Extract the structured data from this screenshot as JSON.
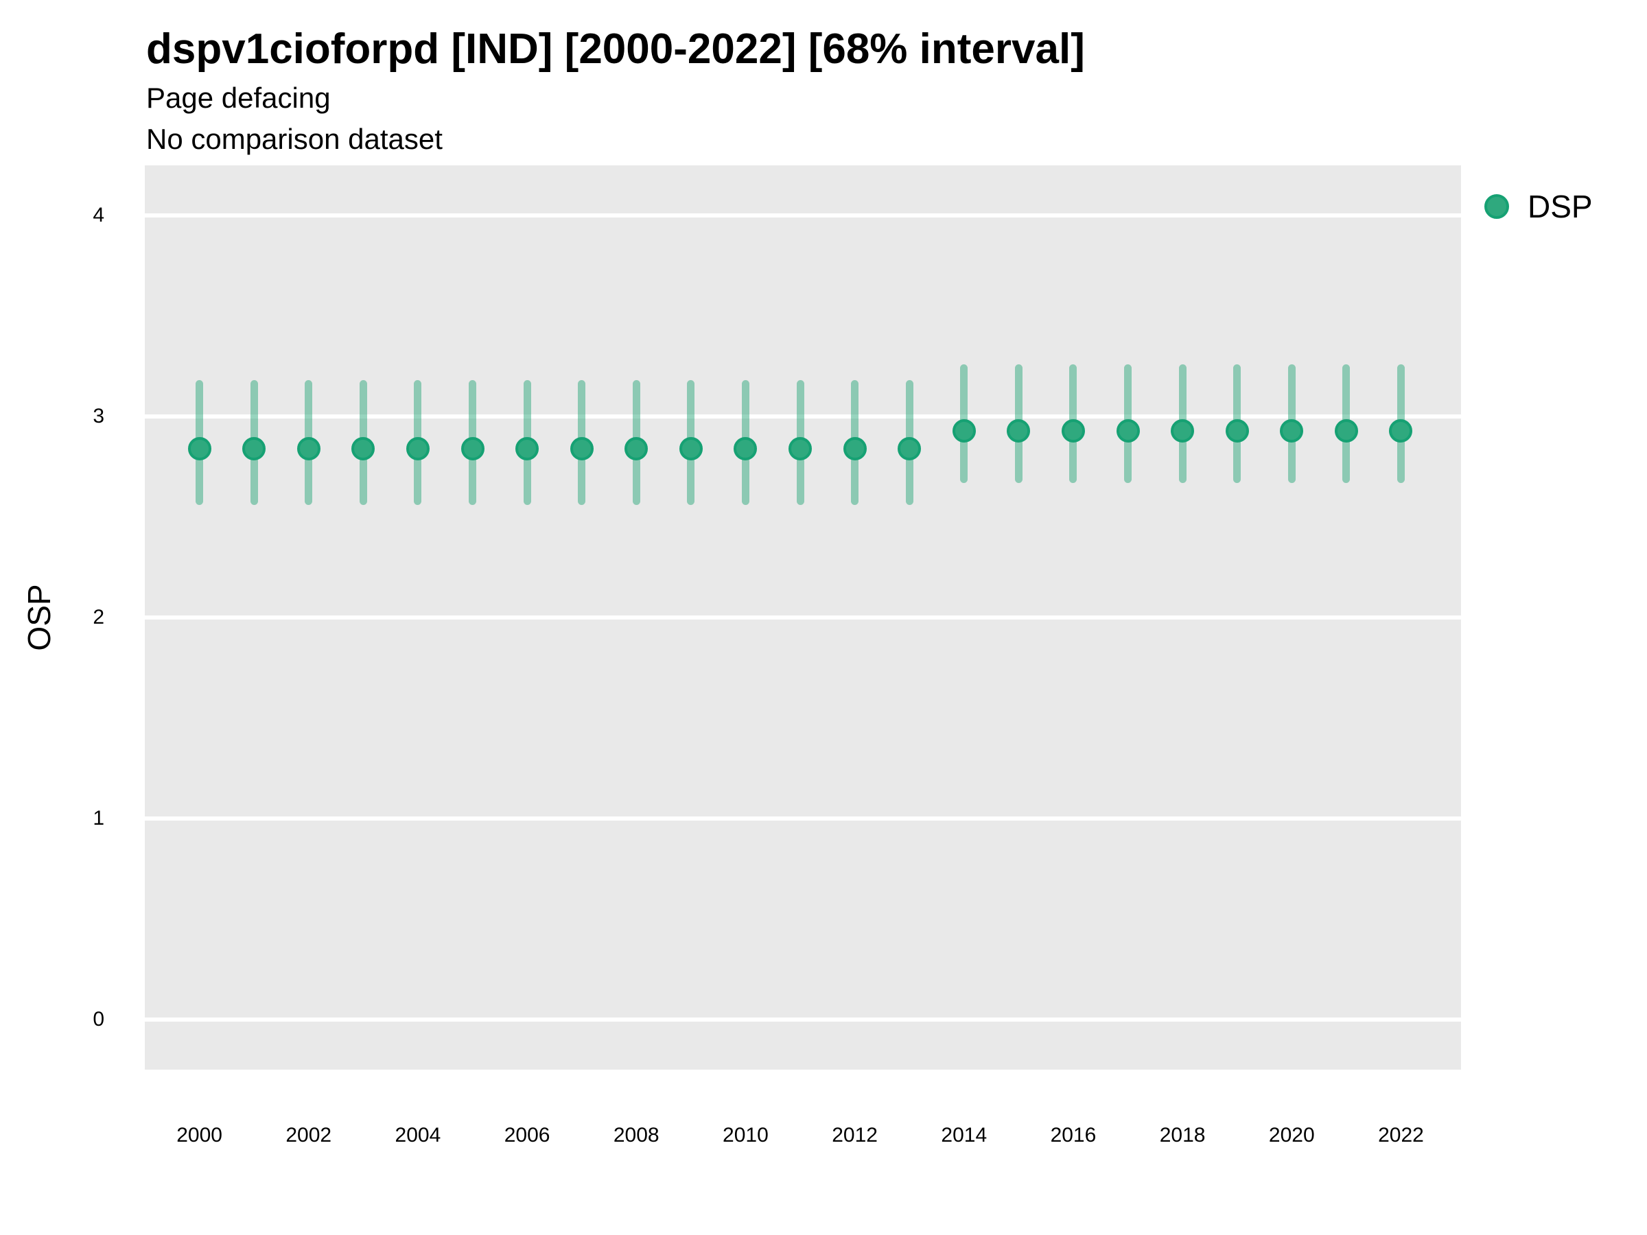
{
  "header": {
    "title": "dspv1cioforpd [IND] [2000-2022] [68% interval]",
    "subtitle": "Page defacing",
    "note": "No comparison dataset"
  },
  "legend": {
    "position": "right",
    "items": [
      {
        "label": "DSP",
        "marker": "circle-icon",
        "marker_fill": "#2fa97e",
        "marker_stroke": "#16a173"
      }
    ]
  },
  "chart_data": {
    "type": "scatter",
    "subtype": "pointrange",
    "title": "dspv1cioforpd [IND] [2000-2022] [68% interval]",
    "subtitle": "Page defacing",
    "note": "No comparison dataset",
    "interval_label": "68% interval",
    "xlabel": "",
    "ylabel": "OSP",
    "grid": "major-horizontal",
    "legend_position": "right",
    "panel_bg": "#e9e9e9",
    "grid_color": "#ffffff",
    "xlim": [
      1999.0,
      2023.1
    ],
    "ylim": [
      -0.25,
      4.25
    ],
    "xticks": [
      2000,
      2002,
      2004,
      2006,
      2008,
      2010,
      2012,
      2014,
      2016,
      2018,
      2020,
      2022
    ],
    "yticks": [
      0,
      1,
      2,
      3,
      4
    ],
    "series": [
      {
        "name": "DSP",
        "point_fill": "#2fa97e",
        "point_stroke": "#16a173",
        "range_color": "rgba(47,169,126,0.5)",
        "x": [
          2000,
          2001,
          2002,
          2003,
          2004,
          2005,
          2006,
          2007,
          2008,
          2009,
          2010,
          2011,
          2012,
          2013,
          2014,
          2015,
          2016,
          2017,
          2018,
          2019,
          2020,
          2021,
          2022
        ],
        "y": [
          2.84,
          2.84,
          2.84,
          2.84,
          2.84,
          2.84,
          2.84,
          2.84,
          2.84,
          2.84,
          2.84,
          2.84,
          2.84,
          2.84,
          2.93,
          2.93,
          2.93,
          2.93,
          2.93,
          2.93,
          2.93,
          2.93,
          2.93
        ],
        "y_lo": [
          2.56,
          2.56,
          2.56,
          2.56,
          2.56,
          2.56,
          2.56,
          2.56,
          2.56,
          2.56,
          2.56,
          2.56,
          2.56,
          2.56,
          2.67,
          2.67,
          2.67,
          2.67,
          2.67,
          2.67,
          2.67,
          2.67,
          2.67
        ],
        "y_hi": [
          3.18,
          3.18,
          3.18,
          3.18,
          3.18,
          3.18,
          3.18,
          3.18,
          3.18,
          3.18,
          3.18,
          3.18,
          3.18,
          3.18,
          3.26,
          3.26,
          3.26,
          3.26,
          3.26,
          3.26,
          3.26,
          3.26,
          3.26
        ]
      }
    ]
  }
}
